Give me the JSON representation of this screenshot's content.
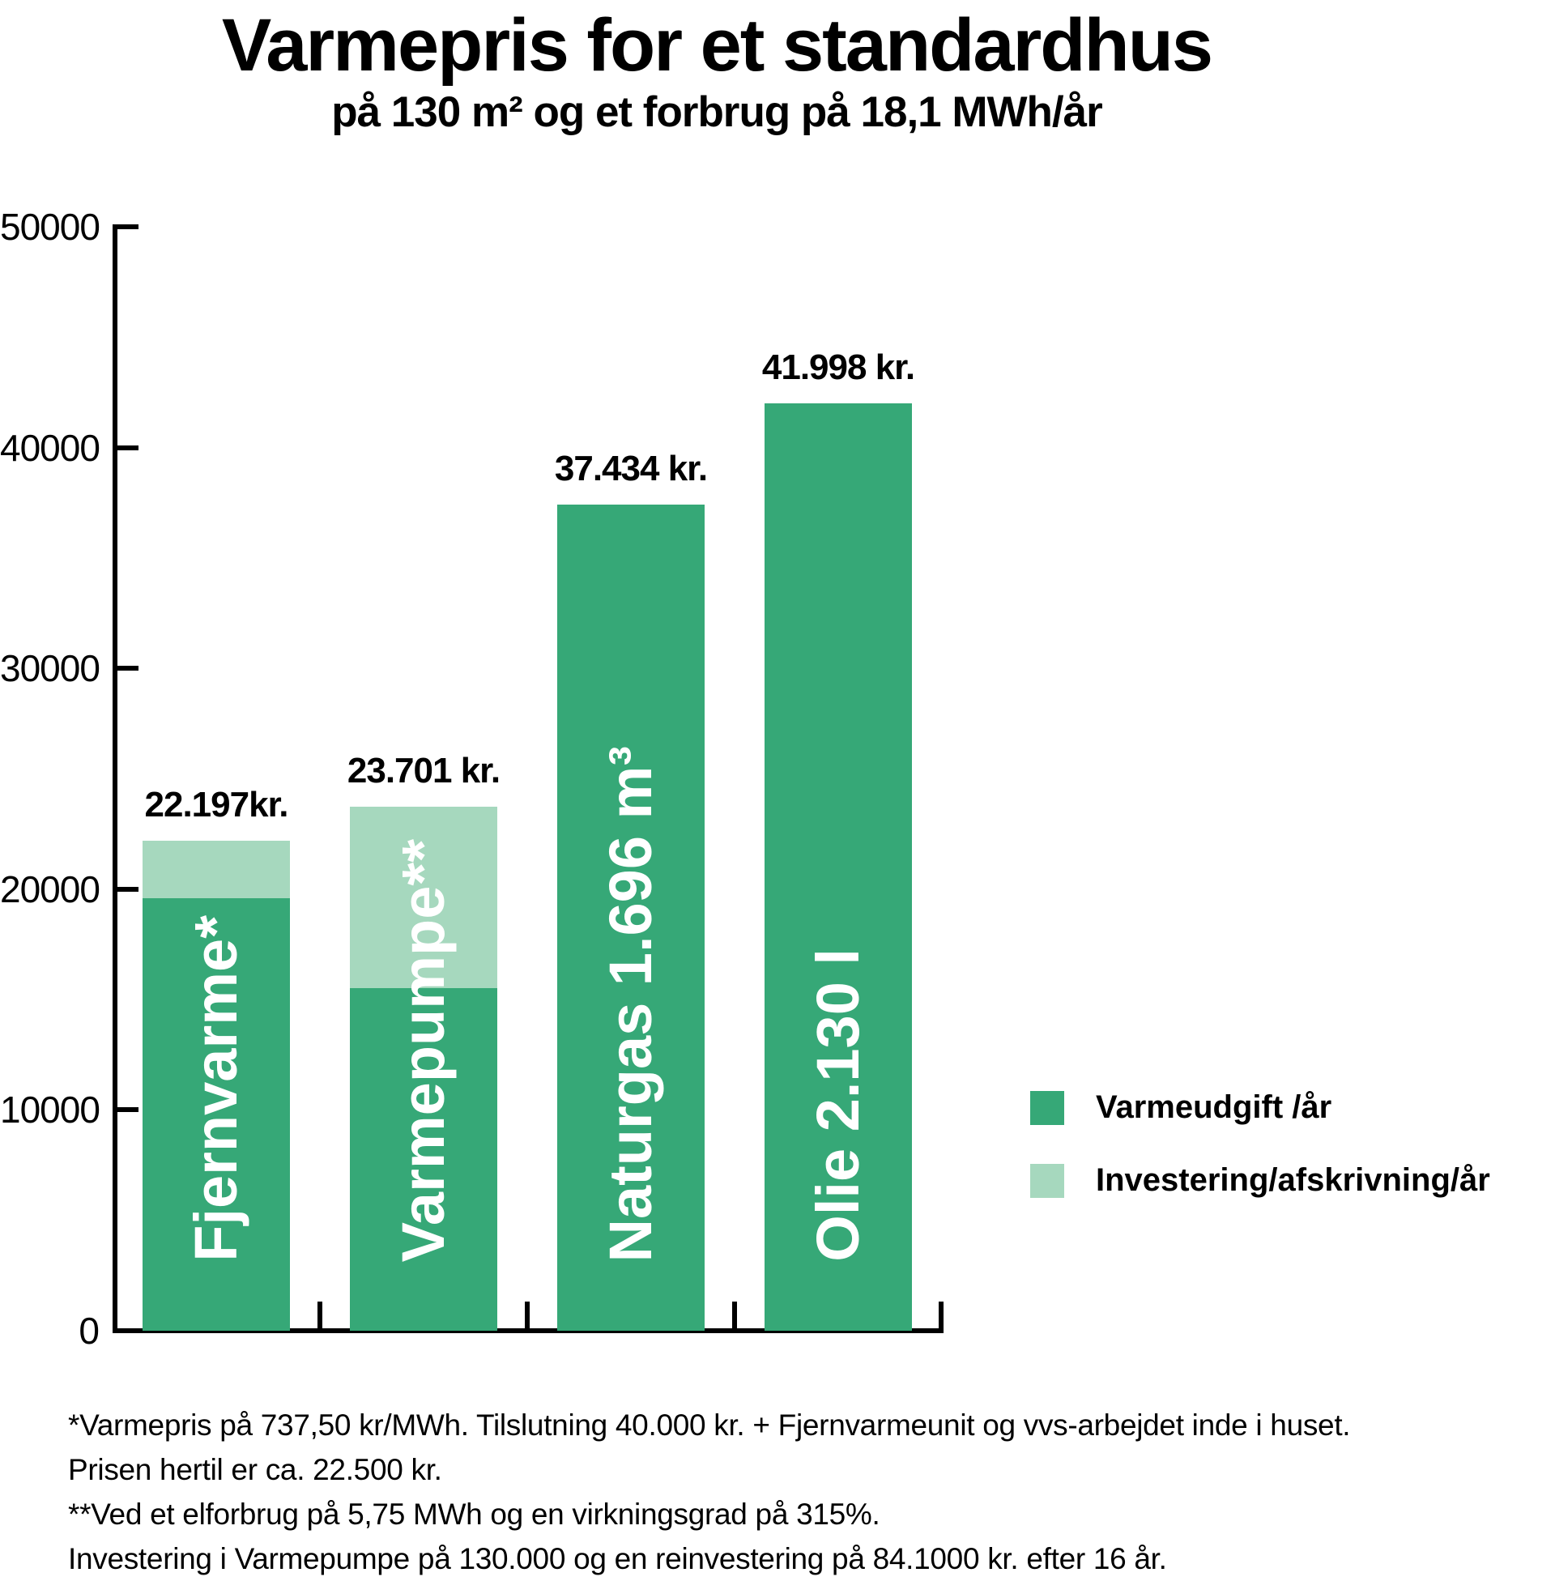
{
  "title": "Varmepris for et standardhus",
  "subtitle": "på 130 m² og et forbrug på 18,1 MWh/år",
  "colors": {
    "varmeudgift_green": "#36A877",
    "investering_green": "#A6D8BE",
    "axis_black": "#000000"
  },
  "legend": {
    "items": [
      {
        "label": "Varmeudgift /år",
        "color_key": "varmeudgift_green"
      },
      {
        "label": "Investering/afskrivning/år",
        "color_key": "investering_green"
      }
    ]
  },
  "footnotes": [
    "*Varmepris på 737,50 kr/MWh. Tilslutning 40.000 kr. + Fjernvarmeunit og vvs-arbejdet inde i huset.",
    "Prisen hertil er ca. 22.500 kr.",
    "**Ved et  elforbrug på 5,75 MWh og en virkningsgrad på 315%.",
    "Investering i Varmepumpe på 130.000 og en reinvestering på 84.1000 kr. efter 16 år."
  ],
  "chart_data": {
    "type": "bar",
    "stacked": true,
    "title": "Varmepris for et standardhus",
    "subtitle": "på 130 m² og et forbrug på 18,1 MWh/år",
    "ylabel": "",
    "xlabel": "",
    "ylim": [
      0,
      50000
    ],
    "ytick_step": 10000,
    "ytick_labels": [
      "0",
      "10000",
      "20000",
      "30000",
      "40000",
      "50000"
    ],
    "grid": false,
    "legend_position": "right",
    "series_names": [
      "Varmeudgift /år",
      "Investering/afskrivning/år"
    ],
    "categories": [
      "Fjernvarme*",
      "Varmepumpe**",
      "Naturgas 1.696 m³",
      "Olie 2.130 l"
    ],
    "bars": [
      {
        "name": "Fjernvarme*",
        "total": 22197,
        "total_label": "22.197kr.",
        "varmeudgift": 19600,
        "investering": 2597
      },
      {
        "name": "Varmepumpe**",
        "total": 23701,
        "total_label": "23.701 kr.",
        "varmeudgift": 15500,
        "investering": 8201
      },
      {
        "name": "Naturgas 1.696 m³",
        "total": 37434,
        "total_label": "37.434 kr.",
        "varmeudgift": 37434,
        "investering": 0
      },
      {
        "name": "Olie 2.130 l",
        "total": 41998,
        "total_label": "41.998 kr.",
        "varmeudgift": 41998,
        "investering": 0
      }
    ]
  }
}
